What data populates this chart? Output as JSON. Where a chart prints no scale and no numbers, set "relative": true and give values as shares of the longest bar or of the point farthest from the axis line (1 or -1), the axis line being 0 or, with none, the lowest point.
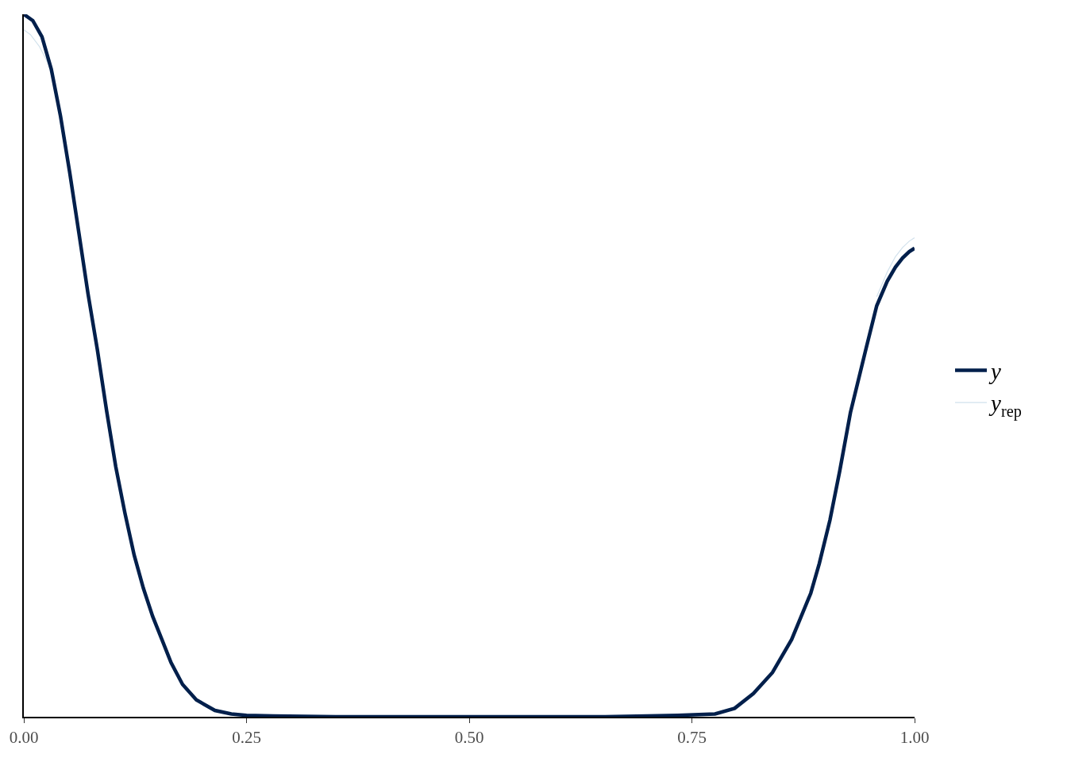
{
  "chart_data": {
    "type": "line",
    "relative": true,
    "xlim": [
      0,
      1
    ],
    "xticks": [
      {
        "value": 0,
        "label": "0.00"
      },
      {
        "value": 0.25,
        "label": "0.25"
      },
      {
        "value": 0.5,
        "label": "0.50"
      },
      {
        "value": 0.75,
        "label": "0.75"
      },
      {
        "value": 1,
        "label": "1.00"
      }
    ],
    "tick_labels": "x",
    "legend": "right",
    "line_style": "solid",
    "series": [
      {
        "name": "y",
        "color": "#011f4b",
        "x": [
          0,
          0.0101,
          0.0204,
          0.0308,
          0.0412,
          0.0515,
          0.0618,
          0.0721,
          0.0825,
          0.0929,
          0.1032,
          0.1135,
          0.1239,
          0.1342,
          0.1446,
          0.155,
          0.1653,
          0.1782,
          0.1937,
          0.2145,
          0.233,
          0.25,
          0.28,
          0.35,
          0.5,
          0.65,
          0.7,
          0.734,
          0.776,
          0.798,
          0.819,
          0.8405,
          0.862,
          0.8835,
          0.893,
          0.905,
          0.916,
          0.928,
          0.9455,
          0.9575,
          0.9693,
          0.9785,
          0.9865,
          0.994,
          1.0
        ],
        "values": [
          1.0,
          0.991,
          0.968,
          0.922,
          0.855,
          0.775,
          0.689,
          0.602,
          0.523,
          0.436,
          0.356,
          0.29,
          0.23,
          0.183,
          0.143,
          0.11,
          0.077,
          0.046,
          0.024,
          0.009,
          0.004,
          0.002,
          0.001,
          0,
          0,
          0,
          0.001,
          0.002,
          0.004,
          0.012,
          0.033,
          0.063,
          0.11,
          0.176,
          0.218,
          0.28,
          0.35,
          0.433,
          0.524,
          0.585,
          0.62,
          0.64,
          0.653,
          0.662,
          0.667
        ]
      },
      {
        "name": "y$_{rep}$",
        "color": "#d1e1ec",
        "x": [
          0,
          0.0075,
          0.0176,
          0.0282,
          0.5,
          0.9575,
          0.9693,
          0.9785,
          0.9865,
          0.994,
          1.0
        ],
        "values": [
          0.978,
          0.971,
          0.954,
          0.928,
          null,
          0.598,
          0.633,
          0.655,
          0.668,
          0.677,
          0.682
        ]
      }
    ]
  }
}
